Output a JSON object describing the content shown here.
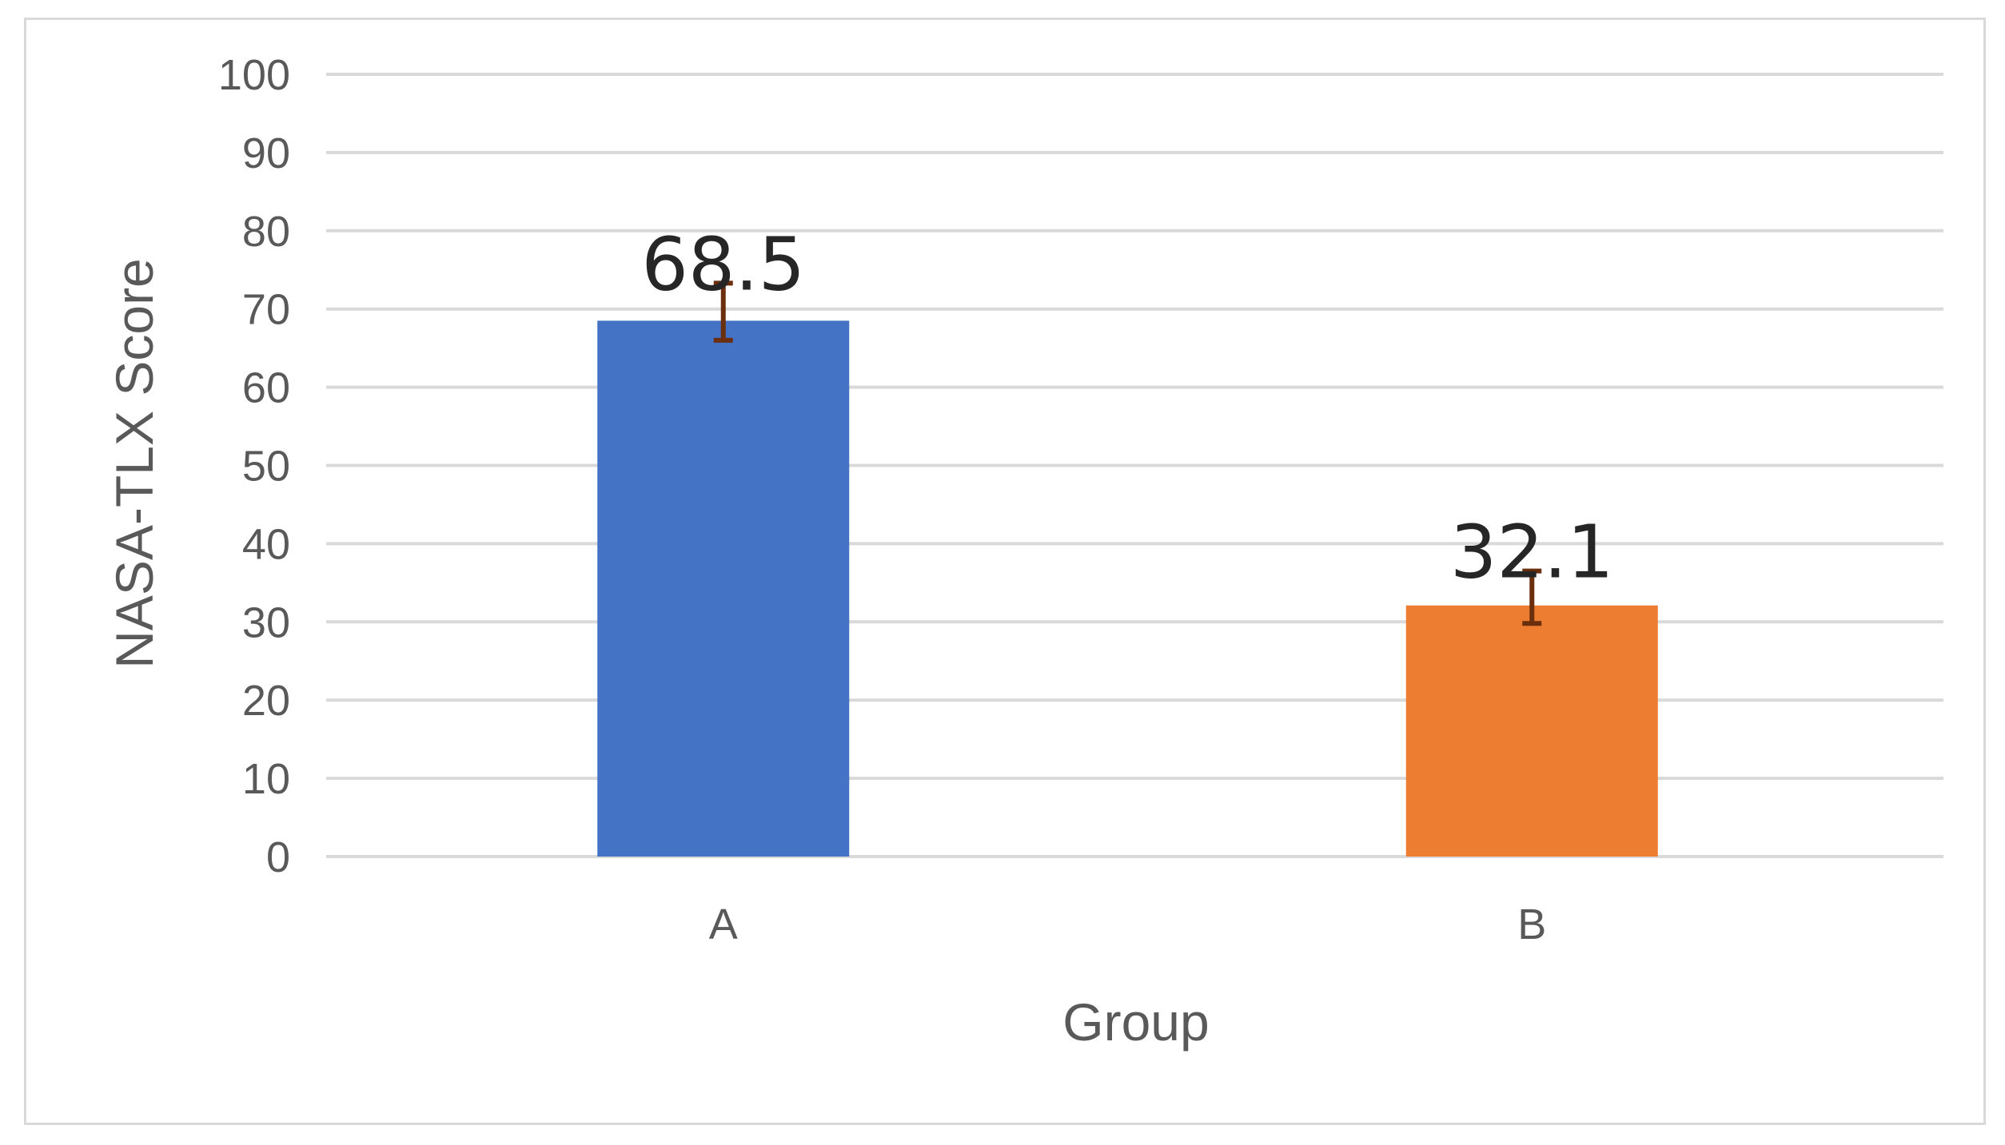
{
  "chart_data": {
    "type": "bar",
    "title": "",
    "xlabel": "Group",
    "ylabel": "NASA-TLX Score",
    "categories": [
      "A",
      "B"
    ],
    "values": [
      68.5,
      32.1
    ],
    "data_labels": [
      "68.5",
      "32.1"
    ],
    "error_upper": [
      73.3,
      36.5
    ],
    "error_lower": [
      66.0,
      29.8
    ],
    "ylim": [
      0,
      100
    ],
    "ytick_values": [
      0,
      10,
      20,
      30,
      40,
      50,
      60,
      70,
      80,
      90,
      100
    ],
    "ytick_labels": [
      "0",
      "10",
      "20",
      "30",
      "40",
      "50",
      "60",
      "70",
      "80",
      "90",
      "100"
    ],
    "grid": true,
    "legend": "none",
    "colors": {
      "bars": [
        "#4472C4",
        "#ED7D31"
      ],
      "error_bar": "#6B2F0E",
      "grid": "#d9d9d9",
      "tick_text": "#595959"
    }
  }
}
